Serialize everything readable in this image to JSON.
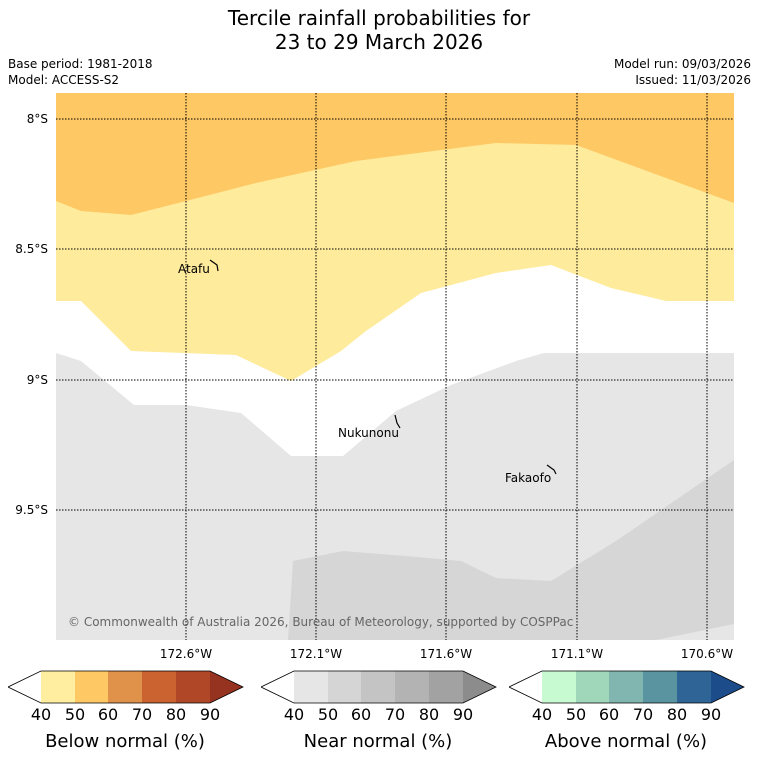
{
  "title": {
    "line1": "Tercile rainfall probabilities for",
    "line2": "23 to 29 March 2026"
  },
  "meta": {
    "base_period": "Base period: 1981-2018",
    "model": "Model: ACCESS-S2",
    "model_run": "Model run: 09/03/2026",
    "issued": "Issued: 11/03/2026"
  },
  "map": {
    "lat_labels": [
      "8°S",
      "8.5°S",
      "9°S",
      "9.5°S"
    ],
    "lon_labels": [
      "172.6°W",
      "172.1°W",
      "171.6°W",
      "171.1°W",
      "170.6°W"
    ],
    "places": [
      "Atafu",
      "Nukunonu",
      "Fakaofo"
    ],
    "copyright": "© Commonwealth of Australia 2026, Bureau of Meteorology, supported by COSPPac",
    "colors": {
      "below_50": "#ffeb9c",
      "below_60": "#fec965",
      "near_50": "#e6e6e6",
      "near_60": "#d6d6d6"
    }
  },
  "colorbars": [
    {
      "title": "Below normal (%)",
      "ticks": [
        "40",
        "50",
        "60",
        "70",
        "80",
        "90"
      ],
      "colors": [
        "#ffffff",
        "#ffeda0",
        "#fec864",
        "#e0914a",
        "#ca6330",
        "#b04828",
        "#963220"
      ]
    },
    {
      "title": "Near normal (%)",
      "ticks": [
        "40",
        "50",
        "60",
        "70",
        "80",
        "90"
      ],
      "colors": [
        "#ffffff",
        "#e6e6e6",
        "#d5d5d5",
        "#c4c4c4",
        "#b3b3b3",
        "#a2a2a2",
        "#8c8c8c"
      ]
    },
    {
      "title": "Above normal (%)",
      "ticks": [
        "40",
        "50",
        "60",
        "70",
        "80",
        "90"
      ],
      "colors": [
        "#ffffff",
        "#c8fad2",
        "#a0d7bb",
        "#80b6af",
        "#5a94a0",
        "#2f6596",
        "#1c4c8a"
      ]
    }
  ]
}
